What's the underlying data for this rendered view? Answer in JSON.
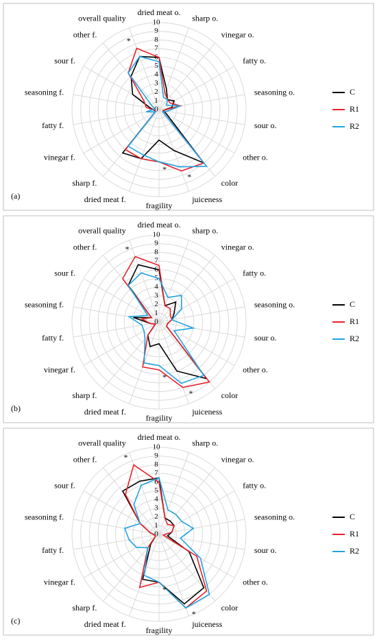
{
  "chart_data": [
    {
      "type": "radar",
      "label": "(a)",
      "categories": [
        "dried meat o.",
        "sharp o.",
        "vinegar o.",
        "fatty o.",
        "seasoning o.",
        "sour o.",
        "other o.",
        "color",
        "juiceness",
        "fragility",
        "dried meat f.",
        "sharp f.",
        "vinegar f.",
        "fatty f.",
        "seasoning f.",
        "sour f.",
        "other f.",
        "overall quality"
      ],
      "rlim": [
        0,
        10
      ],
      "rticks": [
        0,
        1,
        2,
        3,
        4,
        5,
        6,
        7,
        8,
        9,
        10
      ],
      "series": [
        {
          "name": "C",
          "color": "#000000",
          "values": [
            6,
            2.5,
            1.5,
            2,
            1.5,
            0.5,
            1,
            8,
            5,
            3.5,
            6,
            6.5,
            0.5,
            0.5,
            1,
            3.5,
            5,
            6.5
          ]
        },
        {
          "name": "R1",
          "color": "#e8202a",
          "values": [
            6,
            2,
            1.5,
            1.5,
            2.5,
            0.5,
            0.5,
            8,
            7.5,
            6,
            6,
            6,
            0.5,
            0.5,
            1.5,
            2,
            5.5,
            7.5
          ]
        },
        {
          "name": "R2",
          "color": "#1fa3e0",
          "values": [
            5.5,
            1.5,
            1.5,
            1,
            2.5,
            1,
            0.5,
            8.5,
            7,
            6,
            5.5,
            5.5,
            0.5,
            1.5,
            0.5,
            1,
            5.5,
            6.5
          ]
        }
      ],
      "annotations": [
        {
          "text": "*",
          "category": "overall quality"
        },
        {
          "text": "*",
          "category": "juiceness"
        },
        {
          "text": "*",
          "category": "fragility"
        }
      ]
    },
    {
      "type": "radar",
      "label": "(b)",
      "categories": [
        "dried meat o.",
        "sharp o.",
        "vinegar o.",
        "fatty o.",
        "seasoning o.",
        "sour o.",
        "other o.",
        "color",
        "juiceness",
        "fragility",
        "dried meat f.",
        "sharp f.",
        "vinegar f.",
        "fatty f.",
        "seasoning f.",
        "sour f.",
        "other f.",
        "overall quality"
      ],
      "rlim": [
        0,
        10
      ],
      "rticks": [
        0,
        1,
        2,
        3,
        4,
        5,
        6,
        7,
        8,
        9,
        10
      ],
      "series": [
        {
          "name": "C",
          "color": "#000000",
          "values": [
            6,
            2,
            3,
            2,
            1.5,
            1,
            1,
            8.5,
            6,
            2.5,
            3,
            2,
            0.5,
            1,
            3,
            1,
            5.5,
            7
          ]
        },
        {
          "name": "R1",
          "color": "#e8202a",
          "values": [
            6.5,
            2,
            2,
            1.5,
            1.5,
            1,
            1,
            9,
            8,
            5.5,
            5.5,
            2,
            0.5,
            1,
            2,
            1,
            6.5,
            8
          ]
        },
        {
          "name": "R2",
          "color": "#1fa3e0",
          "values": [
            5,
            3,
            4,
            3,
            1.5,
            4,
            2,
            8,
            7.5,
            5,
            5,
            2.5,
            2,
            2,
            3.5,
            1.5,
            5.5,
            6
          ]
        }
      ],
      "annotations": [
        {
          "text": "*",
          "category": "overall quality"
        },
        {
          "text": "*",
          "category": "juiceness"
        },
        {
          "text": "*",
          "category": "fragility"
        }
      ]
    },
    {
      "type": "radar",
      "label": "(c)",
      "categories": [
        "dried meat o.",
        "sharp o.",
        "vinegar o.",
        "fatty o.",
        "seasoning o.",
        "sour o.",
        "other o.",
        "color",
        "juiceness",
        "fragility",
        "dried meat f.",
        "sharp f.",
        "vinegar f.",
        "fatty f.",
        "seasoning f.",
        "sour f.",
        "other f.",
        "overall quality"
      ],
      "rlim": [
        0,
        10
      ],
      "rticks": [
        0,
        1,
        2,
        3,
        4,
        5,
        6,
        7,
        8,
        9,
        10
      ],
      "series": [
        {
          "name": "C",
          "color": "#000000",
          "values": [
            6.5,
            2,
            2,
            2,
            1.5,
            1,
            4,
            8,
            8.5,
            5.5,
            5.5,
            1.5,
            0.5,
            0.5,
            1,
            2.5,
            6.5,
            6.5
          ]
        },
        {
          "name": "R1",
          "color": "#e8202a",
          "values": [
            6,
            2,
            1.5,
            2,
            1.5,
            0.5,
            5,
            8.5,
            9,
            5.5,
            6.5,
            2,
            0.5,
            0.5,
            1,
            2.5,
            6,
            8.5
          ]
        },
        {
          "name": "R2",
          "color": "#1fa3e0",
          "values": [
            6.5,
            3,
            3,
            3,
            4,
            2.5,
            5.5,
            9,
            9,
            5.5,
            5,
            2,
            3,
            3.5,
            4,
            2.5,
            4.5,
            6
          ]
        }
      ],
      "annotations": [
        {
          "text": "*",
          "category": "overall quality"
        },
        {
          "text": "*",
          "category": "juiceness"
        },
        {
          "text": "*",
          "category": "fragility"
        }
      ]
    }
  ]
}
